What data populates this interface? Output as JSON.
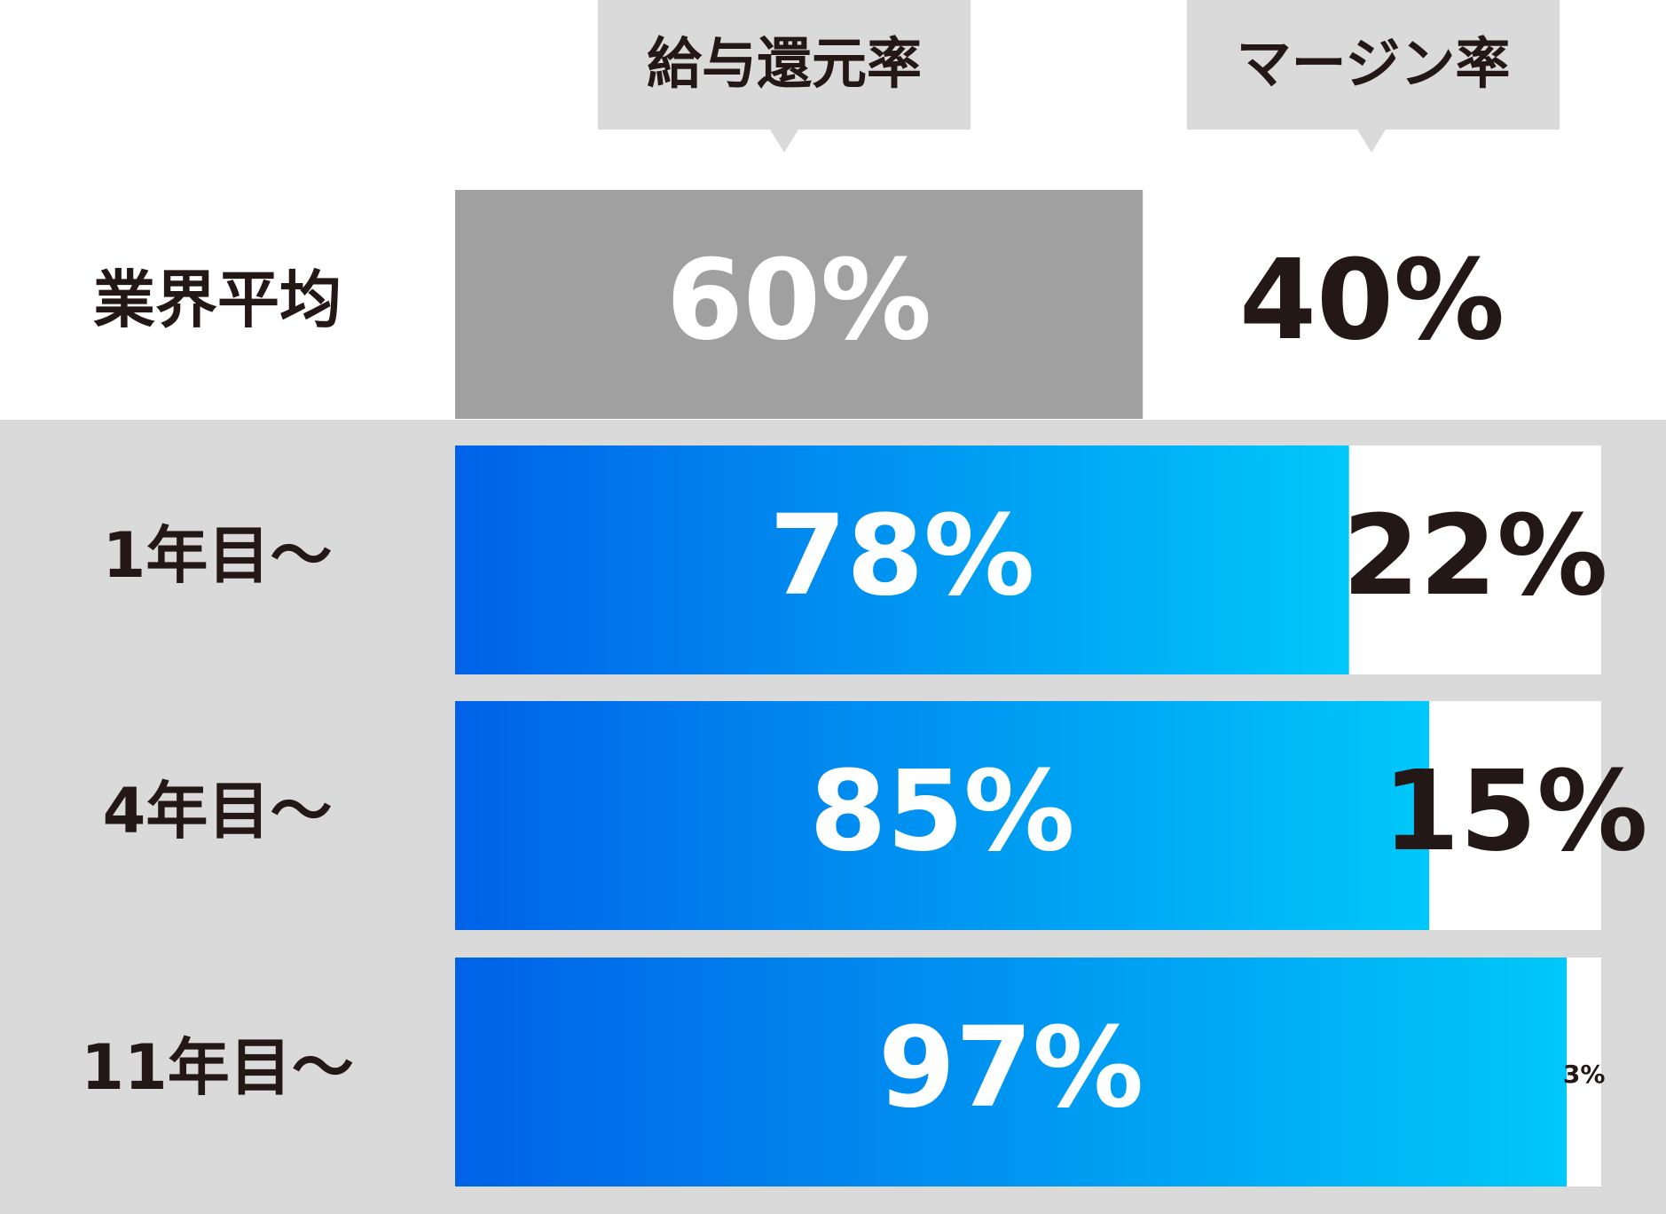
{
  "chart_data": {
    "type": "stacked-bar",
    "categories": [
      "業界平均",
      "1年目〜",
      "4年目〜",
      "11年目〜"
    ],
    "series": [
      {
        "name": "給与還元率",
        "color": "#0062e8",
        "highlight_color": "#a0a0a0",
        "values": [
          60,
          78,
          85,
          97
        ],
        "value_labels": [
          "60%",
          "78%",
          "85%",
          "97%"
        ]
      },
      {
        "name": "マージン率",
        "color": "#ffffff",
        "values": [
          40,
          22,
          15,
          3
        ],
        "value_labels": [
          "40%",
          "22%",
          "15%",
          "3%"
        ]
      }
    ],
    "xlim": [
      0,
      100
    ]
  }
}
